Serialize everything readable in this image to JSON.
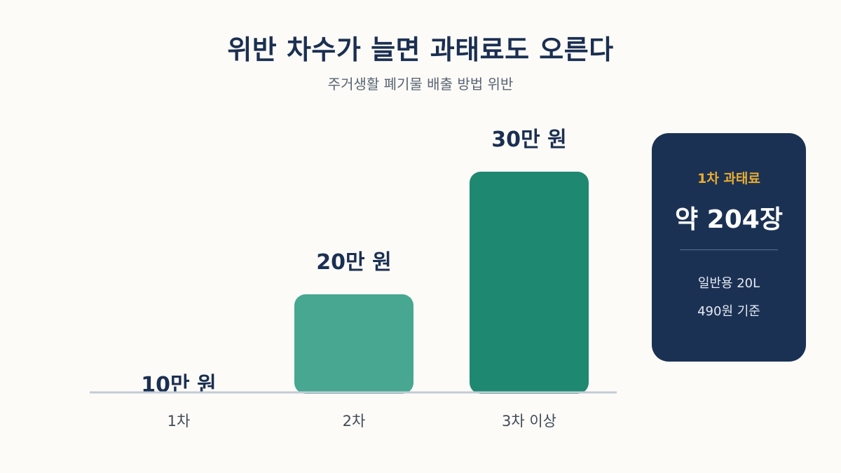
{
  "header": {
    "title": "위반 차수가 늘면 과태료도 오른다",
    "subtitle": "주거생활 폐기물 배출 방법 위반"
  },
  "summary_card": {
    "label": "1차 과태료",
    "value": "약 204장",
    "note_line1": "일반용 20L",
    "note_line2": "490원 기준"
  },
  "colors": {
    "bar_1": "#93d1c3",
    "bar_2": "#47a790",
    "bar_3": "#1e8870",
    "axis": "#c4ccd6",
    "value_label": "#1b2f52",
    "category_label": "#414b59",
    "card_bg": "#1b3154",
    "card_label": "#e8ad2f"
  },
  "chart_data": {
    "type": "bar",
    "title": "위반 차수가 늘면 과태료도 오른다",
    "subtitle": "주거생활 폐기물 배출 방법 위반",
    "categories": [
      "1차",
      "2차",
      "3차 이상"
    ],
    "values": [
      10,
      20,
      30
    ],
    "value_labels": [
      "10만 원",
      "20만 원",
      "30만 원"
    ],
    "unit": "만 원",
    "xlabel": "",
    "ylabel": "",
    "ylim": [
      0,
      30
    ],
    "grid": false,
    "legend": "none"
  }
}
